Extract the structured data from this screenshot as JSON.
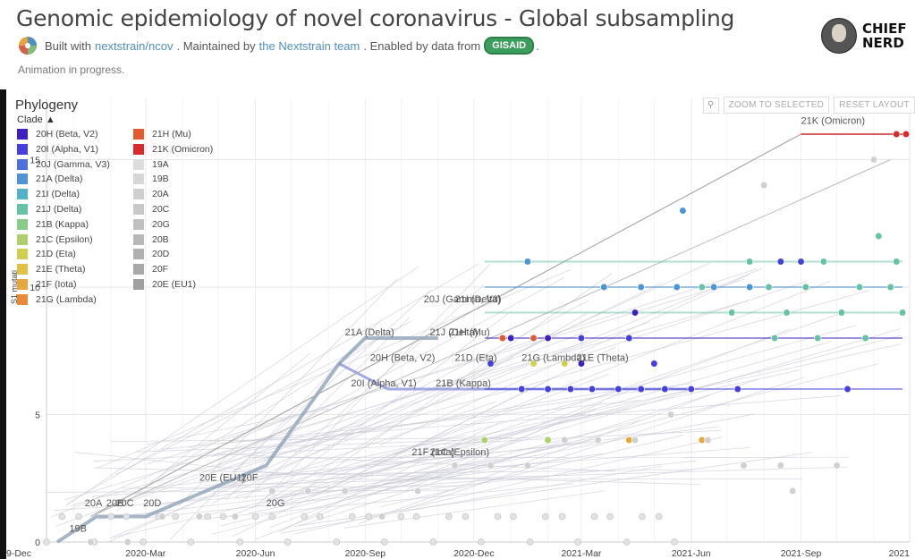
{
  "header": {
    "title": "Genomic epidemiology of novel coronavirus - Global subsampling",
    "byline_built": "Built with",
    "byline_link1": "nextstrain/ncov",
    "byline_maintained": ". Maintained by",
    "byline_link2": "the Nextstrain team",
    "byline_enabled": ". Enabled by data from",
    "byline_gisaid": "GISAID",
    "byline_end": ".",
    "status": "Animation in progress.",
    "badge_line1": "CHIEF",
    "badge_line2": "NERD"
  },
  "panel": {
    "title": "Phylogeny",
    "legend_toggle": "Clade",
    "zoom_button": "ZOOM TO SELECTED",
    "reset_button": "RESET LAYOUT",
    "search_icon": "magnifier-icon"
  },
  "legend": {
    "col1": [
      {
        "label": "20H (Beta, V2)",
        "color": "#3f1fc2"
      },
      {
        "label": "20I (Alpha, V1)",
        "color": "#4440e0"
      },
      {
        "label": "20J (Gamma, V3)",
        "color": "#4a6fe0"
      },
      {
        "label": "21A (Delta)",
        "color": "#4c94d8"
      },
      {
        "label": "21I (Delta)",
        "color": "#54b2c8"
      },
      {
        "label": "21J (Delta)",
        "color": "#64c2a6"
      },
      {
        "label": "21B (Kappa)",
        "color": "#86cd88"
      },
      {
        "label": "21C (Epsilon)",
        "color": "#add06a"
      },
      {
        "label": "21D (Eta)",
        "color": "#cfd04e"
      },
      {
        "label": "21E (Theta)",
        "color": "#e3c041"
      },
      {
        "label": "21F (Iota)",
        "color": "#e8a73a"
      },
      {
        "label": "21G (Lambda)",
        "color": "#ea8834"
      }
    ],
    "col2": [
      {
        "label": "21H (Mu)",
        "color": "#e4592e"
      },
      {
        "label": "21K (Omicron)",
        "color": "#db2a2a"
      },
      {
        "label": "19A",
        "color": "#dcdcdc"
      },
      {
        "label": "19B",
        "color": "#d6d6d6"
      },
      {
        "label": "20A",
        "color": "#cfcfcf"
      },
      {
        "label": "20C",
        "color": "#c8c8c8"
      },
      {
        "label": "20G",
        "color": "#c0c0c0"
      },
      {
        "label": "20B",
        "color": "#b8b8b8"
      },
      {
        "label": "20D",
        "color": "#b0b0b0"
      },
      {
        "label": "20F",
        "color": "#a8a8a8"
      },
      {
        "label": "20E (EU1)",
        "color": "#a0a0a0"
      }
    ]
  },
  "chart_data": {
    "type": "scatter",
    "title": "",
    "xlabel": "",
    "ylabel": "S1 mutati",
    "x_ticks": [
      "9-Dec",
      "2020-Mar",
      "2020-Jun",
      "2020-Sep",
      "2020-Dec",
      "2021-Mar",
      "2021-Jun",
      "2021-Sep",
      "2021"
    ],
    "y_ticks": [
      "0",
      "5",
      "10",
      "15"
    ],
    "ylim": [
      0,
      16
    ],
    "grid": true,
    "clade_labels": [
      {
        "label": "21K (Omicron)",
        "x": "2021-09-01",
        "y": 16.4
      },
      {
        "label": "20J (Gamma, V3)",
        "x": "2020-10-20",
        "y": 9.4
      },
      {
        "label": "21I (Delta)",
        "x": "2020-11-15",
        "y": 9.4
      },
      {
        "label": "21A (Delta)",
        "x": "2020-08-15",
        "y": 8.1
      },
      {
        "label": "21J (Delta)",
        "x": "2020-10-25",
        "y": 8.1
      },
      {
        "label": "21H (Mu)",
        "x": "2020-11-10",
        "y": 8.1
      },
      {
        "label": "20H (Beta, V2)",
        "x": "2020-09-05",
        "y": 7.1
      },
      {
        "label": "21D (Eta)",
        "x": "2020-11-15",
        "y": 7.1
      },
      {
        "label": "21G (Lambda)",
        "x": "2021-01-10",
        "y": 7.1
      },
      {
        "label": "21E (Theta)",
        "x": "2021-02-25",
        "y": 7.1
      },
      {
        "label": "20I (Alpha, V1)",
        "x": "2020-08-20",
        "y": 6.1
      },
      {
        "label": "21B (Kappa)",
        "x": "2020-10-30",
        "y": 6.1
      },
      {
        "label": "21F (Iota)",
        "x": "2020-10-10",
        "y": 3.4
      },
      {
        "label": "21C (Epsilon)",
        "x": "2020-10-25",
        "y": 3.4
      },
      {
        "label": "20E (EU1)",
        "x": "2020-04-15",
        "y": 2.4
      },
      {
        "label": "20F",
        "x": "2020-05-20",
        "y": 2.4
      },
      {
        "label": "20G",
        "x": "2020-06-10",
        "y": 1.4
      },
      {
        "label": "20A",
        "x": "2020-01-10",
        "y": 1.4
      },
      {
        "label": "20B",
        "x": "2020-01-28",
        "y": 1.4
      },
      {
        "label": "20C",
        "x": "2020-02-05",
        "y": 1.4
      },
      {
        "label": "20D",
        "x": "2020-02-28",
        "y": 1.4
      },
      {
        "label": "19B",
        "x": "2019-12-28",
        "y": 0.4
      }
    ],
    "series": [
      {
        "clade": "21K (Omicron)",
        "color": "#db2a2a",
        "points": [
          {
            "x": "2021-11-20",
            "y": 16
          },
          {
            "x": "2021-11-28",
            "y": 16
          }
        ]
      },
      {
        "clade": "21J (Delta)",
        "color": "#64c2a6",
        "points": [
          {
            "x": "2021-06-10",
            "y": 10
          },
          {
            "x": "2021-07-05",
            "y": 9
          },
          {
            "x": "2021-07-20",
            "y": 11
          },
          {
            "x": "2021-08-05",
            "y": 10
          },
          {
            "x": "2021-08-20",
            "y": 9
          },
          {
            "x": "2021-09-05",
            "y": 10
          },
          {
            "x": "2021-09-20",
            "y": 11
          },
          {
            "x": "2021-10-05",
            "y": 9
          },
          {
            "x": "2021-10-20",
            "y": 10
          },
          {
            "x": "2021-11-05",
            "y": 12
          },
          {
            "x": "2021-11-15",
            "y": 10
          },
          {
            "x": "2021-11-25",
            "y": 9
          },
          {
            "x": "2021-08-10",
            "y": 8
          },
          {
            "x": "2021-09-15",
            "y": 8
          },
          {
            "x": "2021-10-25",
            "y": 8
          },
          {
            "x": "2021-11-20",
            "y": 11
          }
        ]
      },
      {
        "clade": "21A (Delta)",
        "color": "#4c94d8",
        "points": [
          {
            "x": "2021-03-20",
            "y": 10
          },
          {
            "x": "2021-04-20",
            "y": 10
          },
          {
            "x": "2021-05-20",
            "y": 10
          },
          {
            "x": "2021-06-20",
            "y": 10
          },
          {
            "x": "2021-07-20",
            "y": 10
          },
          {
            "x": "2021-05-25",
            "y": 13
          },
          {
            "x": "2021-01-15",
            "y": 11
          }
        ]
      },
      {
        "clade": "20I (Alpha, V1)",
        "color": "#4440e0",
        "points": [
          {
            "x": "2020-12-15",
            "y": 7
          },
          {
            "x": "2021-01-10",
            "y": 6
          },
          {
            "x": "2021-02-01",
            "y": 6
          },
          {
            "x": "2021-02-20",
            "y": 6
          },
          {
            "x": "2021-03-10",
            "y": 6
          },
          {
            "x": "2021-04-01",
            "y": 6
          },
          {
            "x": "2021-04-20",
            "y": 6
          },
          {
            "x": "2021-05-10",
            "y": 6
          },
          {
            "x": "2021-06-01",
            "y": 6
          },
          {
            "x": "2021-03-01",
            "y": 8
          },
          {
            "x": "2021-04-10",
            "y": 8
          },
          {
            "x": "2021-05-01",
            "y": 7
          },
          {
            "x": "2021-07-10",
            "y": 6
          },
          {
            "x": "2021-08-15",
            "y": 11
          },
          {
            "x": "2021-09-01",
            "y": 11
          },
          {
            "x": "2021-10-10",
            "y": 6
          }
        ]
      },
      {
        "clade": "20H (Beta, V2)",
        "color": "#3f1fc2",
        "points": [
          {
            "x": "2021-01-01",
            "y": 8
          },
          {
            "x": "2021-02-01",
            "y": 8
          },
          {
            "x": "2021-03-01",
            "y": 7
          },
          {
            "x": "2021-04-15",
            "y": 9
          }
        ]
      },
      {
        "clade": "21D (Eta)",
        "color": "#cfd04e",
        "points": [
          {
            "x": "2021-01-20",
            "y": 7
          },
          {
            "x": "2021-02-15",
            "y": 7
          }
        ]
      },
      {
        "clade": "21F (Iota)",
        "color": "#e8a73a",
        "points": [
          {
            "x": "2021-04-10",
            "y": 4
          },
          {
            "x": "2021-06-10",
            "y": 4
          }
        ]
      },
      {
        "clade": "21C (Epsilon)",
        "color": "#add06a",
        "points": [
          {
            "x": "2020-12-10",
            "y": 4
          },
          {
            "x": "2021-02-01",
            "y": 4
          }
        ]
      },
      {
        "clade": "21H (Mu)",
        "color": "#e4592e",
        "points": [
          {
            "x": "2020-12-25",
            "y": 8
          },
          {
            "x": "2021-01-20",
            "y": 8
          }
        ]
      },
      {
        "clade": "20A (background)",
        "color": "#d0d0d0",
        "points": [
          {
            "x": "2020-01-15",
            "y": 0
          },
          {
            "x": "2020-02-15",
            "y": 0
          },
          {
            "x": "2020-03-15",
            "y": 1
          },
          {
            "x": "2020-04-15",
            "y": 1
          },
          {
            "x": "2020-05-15",
            "y": 1
          },
          {
            "x": "2020-06-15",
            "y": 2
          },
          {
            "x": "2020-07-15",
            "y": 2
          },
          {
            "x": "2020-08-15",
            "y": 2
          },
          {
            "x": "2020-09-15",
            "y": 1
          },
          {
            "x": "2020-10-15",
            "y": 2
          },
          {
            "x": "2020-11-15",
            "y": 3
          },
          {
            "x": "2020-12-15",
            "y": 3
          },
          {
            "x": "2021-01-15",
            "y": 3
          },
          {
            "x": "2021-02-15",
            "y": 4
          },
          {
            "x": "2021-03-15",
            "y": 4
          },
          {
            "x": "2021-04-15",
            "y": 4
          },
          {
            "x": "2021-05-15",
            "y": 5
          },
          {
            "x": "2021-06-15",
            "y": 4
          },
          {
            "x": "2021-07-15",
            "y": 3
          },
          {
            "x": "2021-08-15",
            "y": 3
          },
          {
            "x": "2021-10-01",
            "y": 3
          },
          {
            "x": "2021-11-01",
            "y": 15
          },
          {
            "x": "2021-08-01",
            "y": 14
          },
          {
            "x": "2021-08-25",
            "y": 2
          }
        ]
      }
    ]
  }
}
